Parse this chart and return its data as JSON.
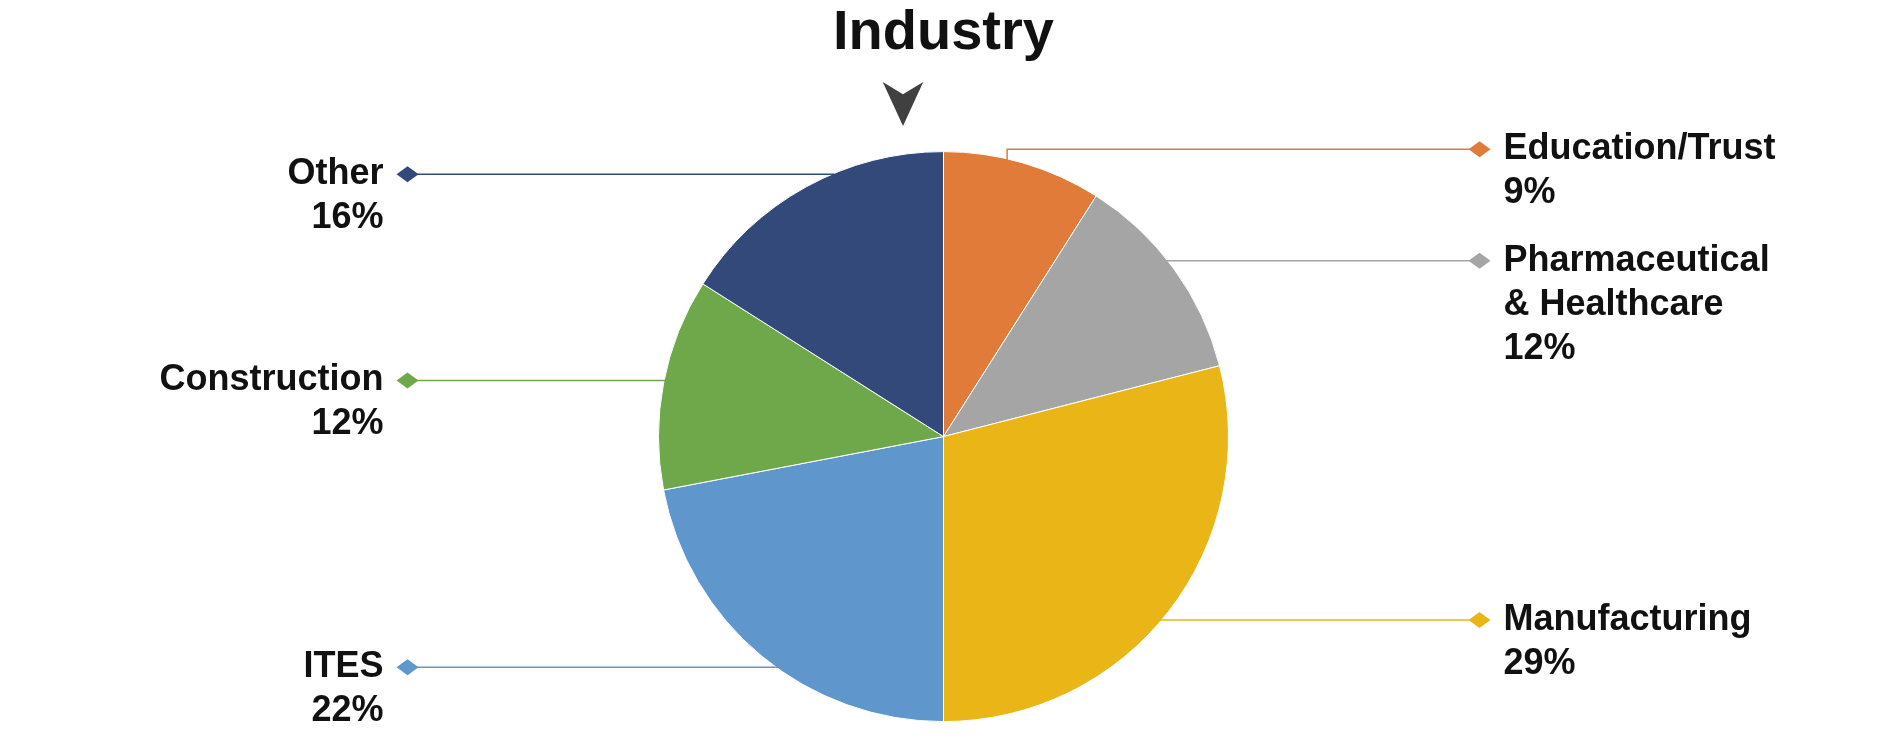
{
  "chart_data": {
    "type": "pie",
    "title": "Industry",
    "categories": [
      "Education/Trust",
      "Pharmaceutical & Healthcare",
      "Manufacturing",
      "ITES",
      "Construction",
      "Other"
    ],
    "values": [
      9,
      12,
      29,
      22,
      12,
      16
    ],
    "value_labels": [
      "9%",
      "12%",
      "29%",
      "22%",
      "12%",
      "16%"
    ],
    "colors": [
      "#e07b39",
      "#a5a5a5",
      "#eab516",
      "#5f96cc",
      "#6fa84a",
      "#33497a"
    ],
    "legend": "right"
  }
}
